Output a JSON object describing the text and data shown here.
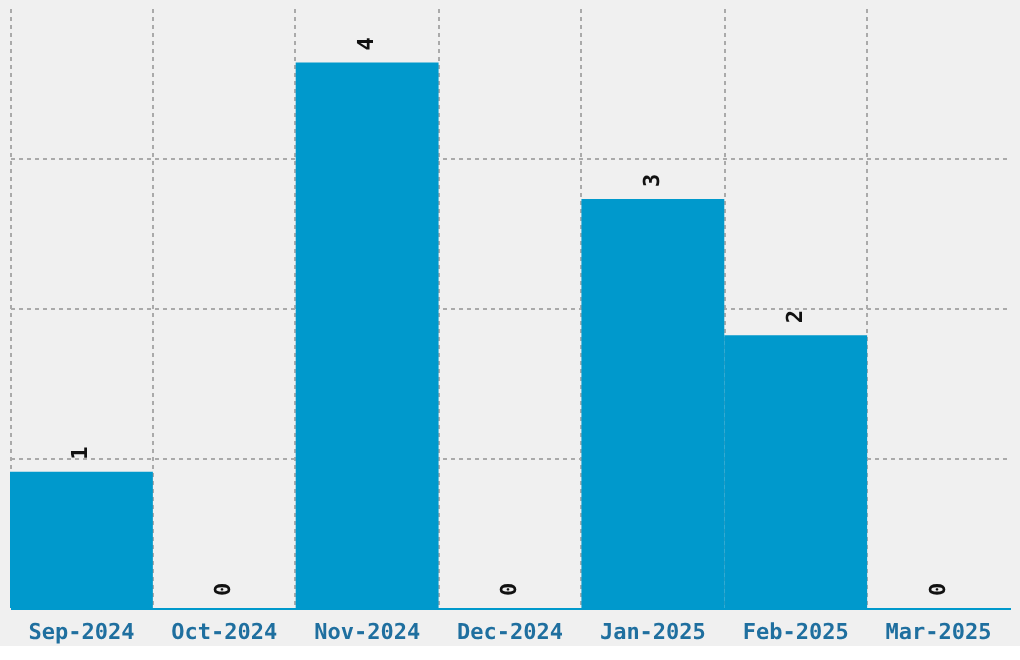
{
  "chart_data": {
    "type": "bar",
    "categories": [
      "Sep-2024",
      "Oct-2024",
      "Nov-2024",
      "Dec-2024",
      "Jan-2025",
      "Feb-2025",
      "Mar-2025"
    ],
    "values": [
      1,
      0,
      4,
      0,
      3,
      2,
      0
    ],
    "color": "#0099cc",
    "ylim": [
      0,
      4.4
    ],
    "yticks": [
      {
        "value": 1.1,
        "label": null
      },
      {
        "value": 2.2,
        "label": null
      },
      {
        "value": 3.3,
        "label": null
      }
    ],
    "tick_labels": "x",
    "grid": true,
    "data_labels": true
  }
}
